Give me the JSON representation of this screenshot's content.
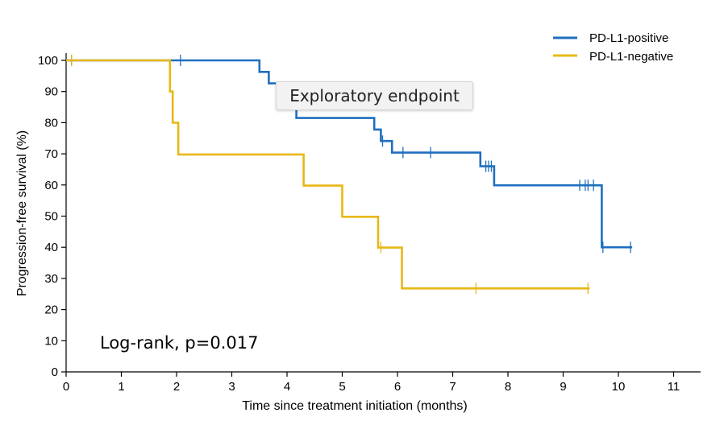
{
  "chart_data": {
    "type": "line",
    "subtype": "kaplan-meier step",
    "xlabel": "Time since treatment initiation (months)",
    "ylabel": "Progression-free survival (%)",
    "xlim": [
      0,
      11.5
    ],
    "ylim": [
      0,
      105
    ],
    "xticks": [
      0,
      1,
      2,
      3,
      4,
      5,
      6,
      7,
      8,
      9,
      10,
      11
    ],
    "yticks": [
      0,
      10,
      20,
      30,
      40,
      50,
      60,
      70,
      80,
      90,
      100
    ],
    "grid": false,
    "legend_position": "top-right",
    "annotation": "Log-rank, p=0.017",
    "tooltip": "Exploratory endpoint",
    "series": [
      {
        "name": "PD-L1-positive",
        "color": "#1f6fbf",
        "steps": [
          [
            0,
            100
          ],
          [
            3.5,
            100
          ],
          [
            3.5,
            96.3
          ],
          [
            3.67,
            96.3
          ],
          [
            3.67,
            92.6
          ],
          [
            3.83,
            92.6
          ],
          [
            3.83,
            88.9
          ],
          [
            4.17,
            88.9
          ],
          [
            4.17,
            81.5
          ],
          [
            5.58,
            81.5
          ],
          [
            5.58,
            77.8
          ],
          [
            5.7,
            77.8
          ],
          [
            5.7,
            74.1
          ],
          [
            5.9,
            74.1
          ],
          [
            5.9,
            70.4
          ],
          [
            7.5,
            70.4
          ],
          [
            7.5,
            66
          ],
          [
            7.75,
            66
          ],
          [
            7.75,
            59.9
          ],
          [
            9.7,
            59.9
          ],
          [
            9.7,
            40
          ],
          [
            10.25,
            40
          ]
        ],
        "censored": [
          [
            0.1,
            100
          ],
          [
            2.07,
            100
          ],
          [
            5.73,
            74.1
          ],
          [
            6.1,
            70.4
          ],
          [
            6.6,
            70.4
          ],
          [
            7.6,
            66
          ],
          [
            7.65,
            66
          ],
          [
            7.7,
            66
          ],
          [
            9.3,
            59.9
          ],
          [
            9.4,
            59.9
          ],
          [
            9.45,
            59.9
          ],
          [
            9.55,
            59.9
          ],
          [
            9.72,
            40
          ],
          [
            10.22,
            40
          ]
        ]
      },
      {
        "name": "PD-L1-negative",
        "color": "#e8b816",
        "steps": [
          [
            0,
            100
          ],
          [
            1.88,
            100
          ],
          [
            1.88,
            90
          ],
          [
            1.93,
            90
          ],
          [
            1.93,
            80
          ],
          [
            2.03,
            80
          ],
          [
            2.03,
            69.8
          ],
          [
            4.3,
            69.8
          ],
          [
            4.3,
            59.8
          ],
          [
            5.0,
            59.8
          ],
          [
            5.0,
            49.8
          ],
          [
            5.65,
            49.8
          ],
          [
            5.65,
            39.9
          ],
          [
            6.08,
            39.9
          ],
          [
            6.08,
            26.8
          ],
          [
            9.48,
            26.8
          ]
        ],
        "censored": [
          [
            0.1,
            100
          ],
          [
            5.7,
            39.9
          ],
          [
            7.42,
            26.8
          ],
          [
            9.45,
            26.8
          ]
        ]
      }
    ]
  }
}
